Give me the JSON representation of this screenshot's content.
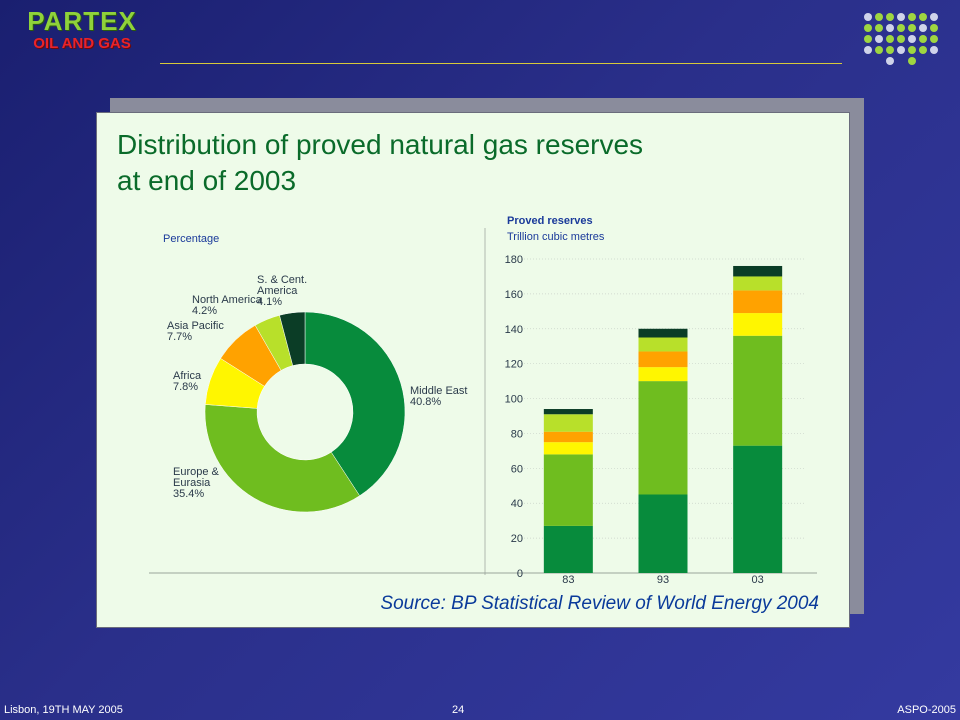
{
  "header": {
    "brand_name": "PARTEX",
    "brand_sub": "OIL AND GAS",
    "dot_colors": [
      "#cfd3ea",
      "#9fd641"
    ]
  },
  "slide": {
    "title_line1": "Distribution of proved natural gas reserves",
    "title_line2": "at end of 2003",
    "source": "Source: BP Statistical Review of World Energy 2004"
  },
  "footer": {
    "left": "Lisbon, 19TH MAY 2005",
    "page": "24",
    "right": "ASPO-2005"
  },
  "chart_data": [
    {
      "type": "pie",
      "subtitle": "Percentage",
      "slices": [
        {
          "label_lines": [
            "Middle East",
            "40.8%"
          ],
          "value": 40.8,
          "color": "#078b3c"
        },
        {
          "label_lines": [
            "Europe &",
            "Eurasia",
            "35.4%"
          ],
          "value": 35.4,
          "color": "#6fbd1f"
        },
        {
          "label_lines": [
            "Africa",
            "7.8%"
          ],
          "value": 7.8,
          "color": "#fff600"
        },
        {
          "label_lines": [
            "Asia Pacific",
            "7.7%"
          ],
          "value": 7.7,
          "color": "#ffa200"
        },
        {
          "label_lines": [
            "North America",
            "4.2%"
          ],
          "value": 4.2,
          "color": "#b8e02a"
        },
        {
          "label_lines": [
            "S. & Cent.",
            "America",
            "4.1%"
          ],
          "value": 4.1,
          "color": "#0b3d26"
        }
      ]
    },
    {
      "type": "bar",
      "stacked": true,
      "title": "Proved reserves",
      "ylabel": "Trillion cubic metres",
      "categories": [
        "83",
        "93",
        "03"
      ],
      "ylim": [
        0,
        180
      ],
      "yticks": [
        0,
        20,
        40,
        60,
        80,
        100,
        120,
        140,
        160,
        180
      ],
      "grid": true,
      "series": [
        {
          "color": "#078b3c",
          "values": [
            27,
            45,
            73
          ]
        },
        {
          "color": "#6fbd1f",
          "values": [
            41,
            65,
            63
          ]
        },
        {
          "color": "#fff600",
          "values": [
            7,
            8,
            13
          ]
        },
        {
          "color": "#ffa200",
          "values": [
            6,
            9,
            13
          ]
        },
        {
          "color": "#b8e02a",
          "values": [
            10,
            8,
            8
          ]
        },
        {
          "color": "#0b3d26",
          "values": [
            3,
            5,
            6
          ]
        }
      ]
    }
  ]
}
